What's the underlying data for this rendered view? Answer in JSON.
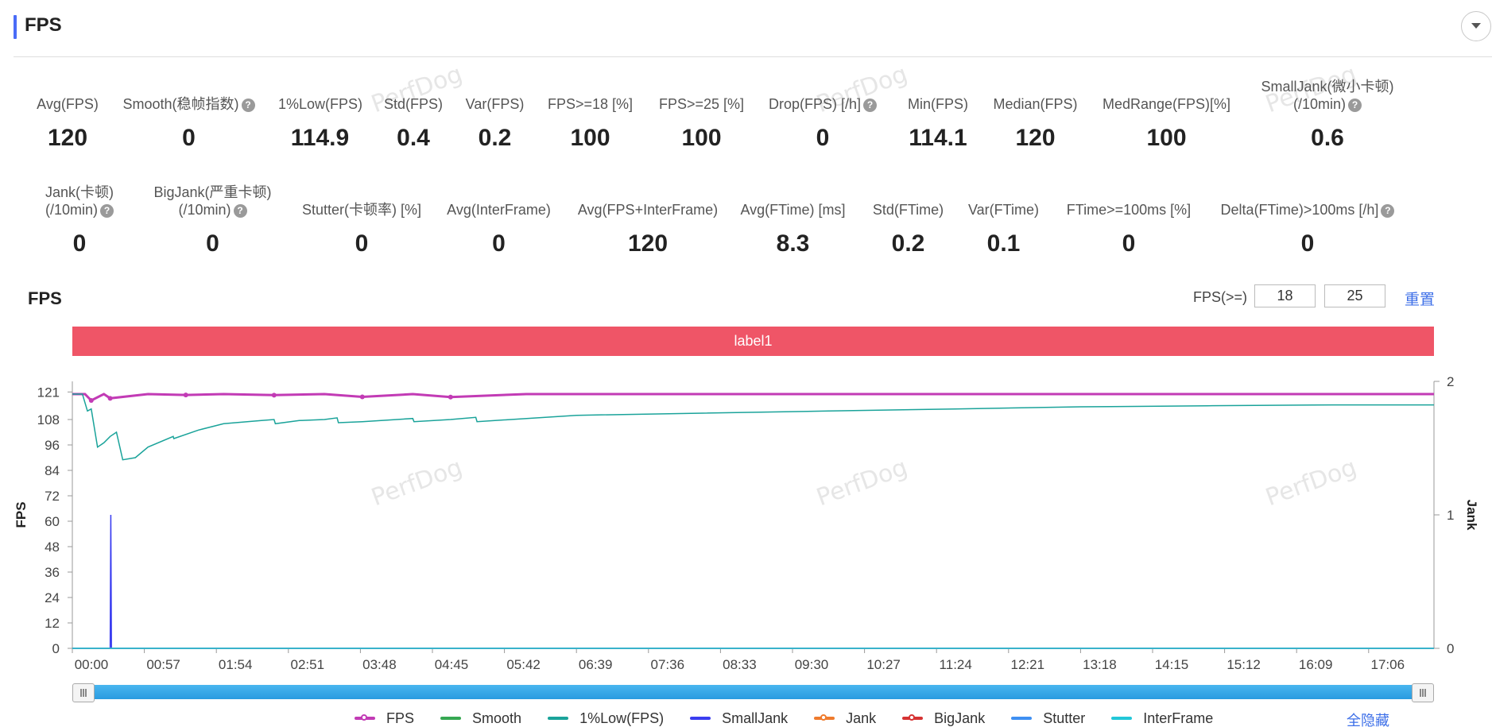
{
  "header": {
    "title": "FPS"
  },
  "stats_row1": [
    {
      "label": "Avg(FPS)",
      "value": "120",
      "help": false
    },
    {
      "label": "Smooth(稳帧指数)",
      "value": "0",
      "help": true
    },
    {
      "label": "1%Low(FPS)",
      "value": "114.9",
      "help": false
    },
    {
      "label": "Std(FPS)",
      "value": "0.4",
      "help": false
    },
    {
      "label": "Var(FPS)",
      "value": "0.2",
      "help": false
    },
    {
      "label": "FPS>=18 [%]",
      "value": "100",
      "help": false
    },
    {
      "label": "FPS>=25 [%]",
      "value": "100",
      "help": false
    },
    {
      "label": "Drop(FPS) [/h]",
      "value": "0",
      "help": true
    },
    {
      "label": "Min(FPS)",
      "value": "114.1",
      "help": false
    },
    {
      "label": "Median(FPS)",
      "value": "120",
      "help": false
    },
    {
      "label": "MedRange(FPS)[%]",
      "value": "100",
      "help": false
    },
    {
      "label": "SmallJank(微小卡顿)",
      "label2": "(/10min)",
      "value": "0.6",
      "help": true
    }
  ],
  "stats_row2": [
    {
      "label": "Jank(卡顿)",
      "label2": "(/10min)",
      "value": "0",
      "help": true
    },
    {
      "label": "BigJank(严重卡顿)",
      "label2": "(/10min)",
      "value": "0",
      "help": true
    },
    {
      "label": "Stutter(卡顿率) [%]",
      "value": "0",
      "help": false
    },
    {
      "label": "Avg(InterFrame)",
      "value": "0",
      "help": false
    },
    {
      "label": "Avg(FPS+InterFrame)",
      "value": "120",
      "help": false
    },
    {
      "label": "Avg(FTime) [ms]",
      "value": "8.3",
      "help": false
    },
    {
      "label": "Std(FTime)",
      "value": "0.2",
      "help": false
    },
    {
      "label": "Var(FTime)",
      "value": "0.1",
      "help": false
    },
    {
      "label": "FTime>=100ms [%]",
      "value": "0",
      "help": false
    },
    {
      "label": "Delta(FTime)>100ms [/h]",
      "value": "0",
      "help": true
    }
  ],
  "watermark_text": "PerfDog",
  "chart_section": {
    "title": "FPS",
    "threshold_label": "FPS(>=)",
    "threshold1": "18",
    "threshold2": "25",
    "reset_label": "重置",
    "label_bar": "label1",
    "hide_all_label": "全隐藏"
  },
  "chart_data": {
    "type": "line",
    "xlabel": "",
    "ylabel": "FPS",
    "y2label": "Jank",
    "yticks": [
      0,
      12,
      24,
      36,
      48,
      60,
      72,
      84,
      96,
      108,
      121
    ],
    "ylim": [
      0,
      126
    ],
    "y2ticks": [
      0,
      1,
      2
    ],
    "y2lim": [
      0,
      2
    ],
    "xticks": [
      "00:00",
      "00:57",
      "01:54",
      "02:51",
      "03:48",
      "04:45",
      "05:42",
      "06:39",
      "07:36",
      "08:33",
      "09:30",
      "10:27",
      "11:24",
      "12:21",
      "13:18",
      "14:15",
      "15:12",
      "16:09",
      "17:06"
    ],
    "duration_sec": 1080,
    "series": [
      {
        "name": "FPS",
        "color": "#c23bb5",
        "x": [
          0,
          10,
          15,
          25,
          30,
          60,
          90,
          120,
          160,
          200,
          230,
          270,
          300,
          360,
          420,
          480,
          540,
          600,
          700,
          800,
          900,
          1000,
          1080
        ],
        "values": [
          120,
          120,
          117,
          120,
          118,
          120,
          119.6,
          120,
          119.5,
          120,
          118.7,
          120,
          118.6,
          120,
          120,
          120,
          120,
          120,
          120,
          120,
          120,
          120,
          120
        ]
      },
      {
        "name": "Smooth",
        "color": "#36a852",
        "x": [
          0,
          1080
        ],
        "values": [
          0,
          0
        ]
      },
      {
        "name": "1%Low(FPS)",
        "color": "#1aa39a",
        "x": [
          0,
          8,
          12,
          15,
          20,
          25,
          30,
          35,
          40,
          50,
          60,
          80,
          80.5,
          100,
          120,
          150,
          160,
          161,
          180,
          200,
          210,
          211,
          230,
          270,
          271,
          300,
          320,
          321,
          400,
          500,
          600,
          700,
          800,
          900,
          1000,
          1050,
          1080
        ],
        "values": [
          120,
          120,
          112,
          113,
          95,
          97,
          100,
          102,
          89,
          90,
          95,
          100,
          99,
          103,
          106,
          107.5,
          108,
          106,
          107.5,
          108,
          108.8,
          106.5,
          107,
          108.5,
          107,
          108,
          109,
          107,
          110,
          111,
          112,
          113,
          114,
          114.5,
          114.9,
          114.9,
          114.9
        ]
      },
      {
        "name": "SmallJank",
        "color": "#3a3df0",
        "x": [
          0,
          30,
          30.5,
          31,
          31.5,
          1080
        ],
        "values": [
          0,
          0,
          1,
          0,
          0,
          0
        ]
      },
      {
        "name": "Jank",
        "color": "#ef7b2d",
        "x": [
          0,
          1080
        ],
        "values": [
          0,
          0
        ]
      },
      {
        "name": "BigJank",
        "color": "#d63333",
        "x": [
          0,
          1080
        ],
        "values": [
          0,
          0
        ]
      },
      {
        "name": "Stutter",
        "color": "#3e8ff2",
        "x": [
          0,
          1080
        ],
        "values": [
          0,
          0
        ]
      },
      {
        "name": "InterFrame",
        "color": "#22c7d8",
        "x": [
          0,
          1080
        ],
        "values": [
          0,
          0
        ]
      }
    ]
  },
  "legend": [
    {
      "name": "FPS",
      "color": "#c23bb5",
      "dot": true
    },
    {
      "name": "Smooth",
      "color": "#36a852",
      "dot": false
    },
    {
      "name": "1%Low(FPS)",
      "color": "#1aa39a",
      "dot": false
    },
    {
      "name": "SmallJank",
      "color": "#3a3df0",
      "dot": false
    },
    {
      "name": "Jank",
      "color": "#ef7b2d",
      "dot": true
    },
    {
      "name": "BigJank",
      "color": "#d63333",
      "dot": true
    },
    {
      "name": "Stutter",
      "color": "#3e8ff2",
      "dot": false
    },
    {
      "name": "InterFrame",
      "color": "#22c7d8",
      "dot": false
    }
  ]
}
